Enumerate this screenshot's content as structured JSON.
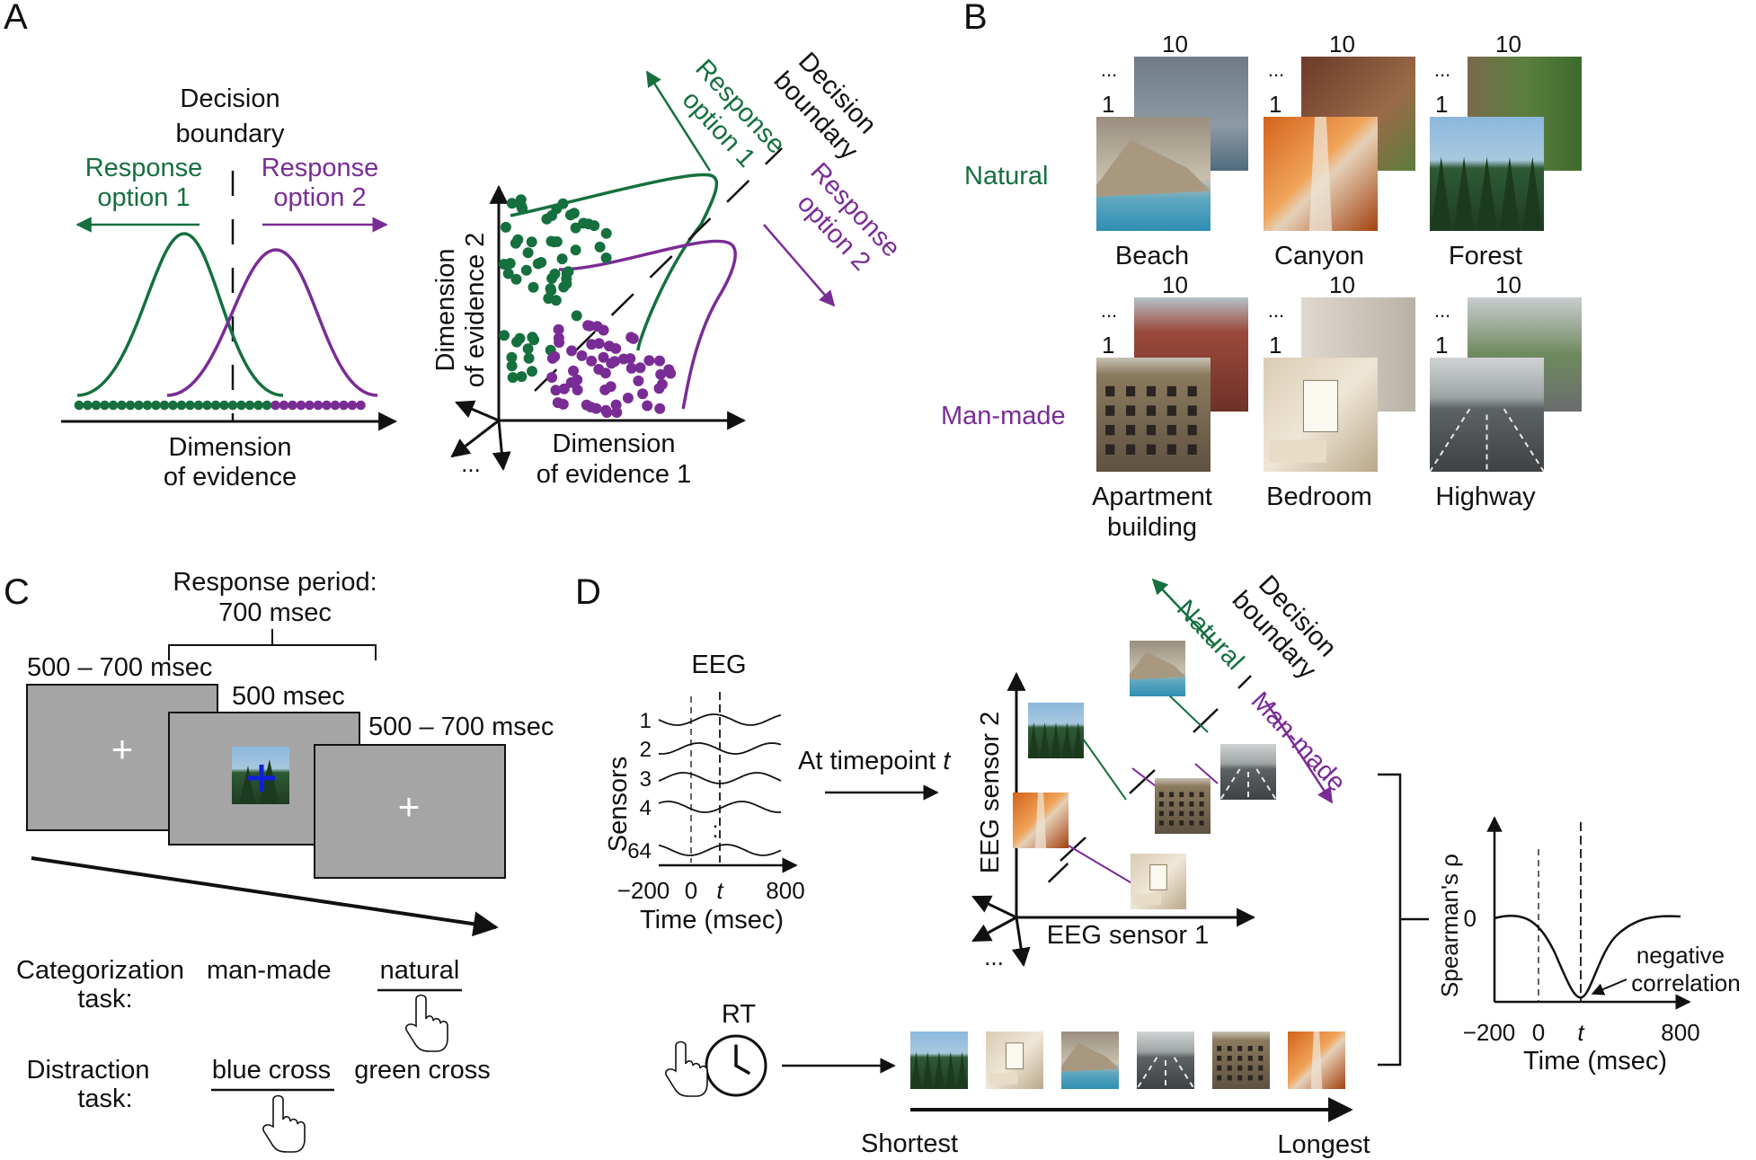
{
  "colors": {
    "green": "#15703e",
    "purple": "#7a2c96",
    "ink": "#111111",
    "screen_gray": "#a5a5a5",
    "cue_blue": "#1020d8"
  },
  "panels": {
    "a": "A",
    "b": "B",
    "c": "C",
    "d": "D"
  },
  "panel_a": {
    "boundary_line1": "Decision",
    "boundary_line2": "boundary",
    "opt1_line1": "Response",
    "opt1_line2": "option 1",
    "opt2_line1": "Response",
    "opt2_line2": "option 2",
    "axis_line1": "Dimension",
    "axis_line2": "of evidence",
    "ellipsis": "...",
    "dim1_line1": "Dimension",
    "dim1_line2": "of evidence 1",
    "dim2_line1": "Dimension",
    "dim2_line2": "of evidence 2",
    "r_boundary_line1": "Decision",
    "r_boundary_line2": "boundary",
    "r_opt1_line1": "Response",
    "r_opt1_line2": "option 1",
    "r_opt2_line1": "Response",
    "r_opt2_line2": "option 2"
  },
  "panel_b": {
    "natural": "Natural",
    "manmade": "Man-made",
    "idx_first": "1",
    "idx_last": "10",
    "ellipsis": "...",
    "categories": [
      {
        "label_line1": "Beach",
        "label_line2": "",
        "icon": "beach-photo"
      },
      {
        "label_line1": "Canyon",
        "label_line2": "",
        "icon": "canyon-photo"
      },
      {
        "label_line1": "Forest",
        "label_line2": "",
        "icon": "forest-photo"
      },
      {
        "label_line1": "Apartment",
        "label_line2": "building",
        "icon": "apartment-photo"
      },
      {
        "label_line1": "Bedroom",
        "label_line2": "",
        "icon": "bedroom-photo"
      },
      {
        "label_line1": "Highway",
        "label_line2": "",
        "icon": "highway-photo"
      }
    ]
  },
  "panel_c": {
    "response_line1": "Response period:",
    "response_line2": "700 msec",
    "t_first": "500 – 700 msec",
    "t_stim": "500 msec",
    "t_last": "500 – 700 msec",
    "cat_task_line1": "Categorization",
    "cat_task_line2": "task:",
    "manmade": "man-made",
    "natural": "natural",
    "dist_task_line1": "Distraction",
    "dist_task_line2": "task:",
    "blue_cross": "blue cross",
    "green_cross": "green cross"
  },
  "panel_d": {
    "eeg_title": "EEG",
    "sensors_label": "Sensors",
    "sensor_ids": [
      "1",
      "2",
      "3",
      "4",
      "64"
    ],
    "tick_neg200": "−200",
    "tick_0": "0",
    "tick_t": "t",
    "tick_800": "800",
    "time_label": "Time (msec)",
    "at_timepoint": "At timepoint",
    "at_timepoint_t": "t",
    "sensor2_label": "EEG sensor 2",
    "sensor1_label": "EEG sensor 1",
    "ellipsis": "...",
    "boundary_line1": "Decision",
    "boundary_line2": "boundary",
    "natural": "Natural",
    "manmade": "Man-made",
    "rt_label": "RT",
    "shortest": "Shortest",
    "longest": "Longest",
    "spearman_label": "Spearman's ρ",
    "zero_tick": "0",
    "neg_line1": "negative",
    "neg_line2": "correlation",
    "rt_order": [
      "forest",
      "bedroom",
      "beach",
      "highway",
      "apartment",
      "canyon"
    ]
  }
}
